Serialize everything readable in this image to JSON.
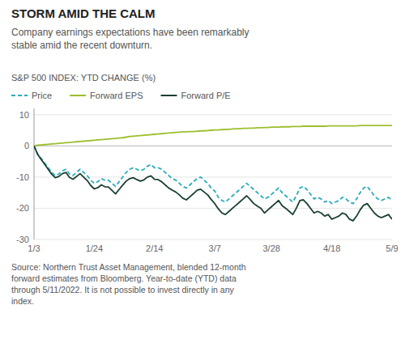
{
  "chart_data": {
    "type": "line",
    "title": "STORM AMID THE CALM",
    "subtitle": "Company earnings expectations have been remarkably\nstable amid the recent downturn.",
    "y_label": "S&P 500 INDEX: YTD CHANGE (%)",
    "source": "Source: Northern Trust Asset Management, blended 12-month\nforward estimates from Bloomberg. Year-to-date (YTD) data\nthrough 5/11/2022. It is not possible to invest directly in any\nindex.",
    "categories": [
      "1/3",
      null,
      null,
      null,
      null,
      null,
      null,
      null,
      null,
      null,
      null,
      null,
      null,
      null,
      null,
      null,
      null,
      "1/24",
      null,
      null,
      null,
      null,
      null,
      null,
      null,
      null,
      null,
      null,
      null,
      null,
      null,
      null,
      null,
      null,
      "2/14",
      null,
      null,
      null,
      null,
      null,
      null,
      null,
      null,
      null,
      null,
      null,
      null,
      null,
      null,
      null,
      null,
      "3/7",
      null,
      null,
      null,
      null,
      null,
      null,
      null,
      null,
      null,
      null,
      null,
      null,
      null,
      null,
      null,
      "3/28",
      null,
      null,
      null,
      null,
      null,
      null,
      null,
      null,
      null,
      null,
      null,
      null,
      null,
      null,
      null,
      null,
      "4/18",
      null,
      null,
      null,
      null,
      null,
      null,
      null,
      null,
      null,
      null,
      null,
      null,
      null,
      null,
      null,
      null,
      "5/9"
    ],
    "series": [
      {
        "name": "Price",
        "color": "#2AADBB",
        "line_style": "dashed",
        "values": [
          0.0,
          -2.5,
          -4.0,
          -5.5,
          -7.0,
          -8.5,
          -9.5,
          -9.0,
          -8.0,
          -7.5,
          -9.0,
          -9.5,
          -8.5,
          -7.5,
          -8.5,
          -9.5,
          -11.0,
          -12.0,
          -11.5,
          -10.5,
          -11.0,
          -11.0,
          -12.0,
          -13.0,
          -11.5,
          -10.0,
          -8.5,
          -7.5,
          -7.0,
          -7.5,
          -8.0,
          -7.5,
          -6.5,
          -6.0,
          -7.0,
          -7.0,
          -7.5,
          -8.5,
          -9.5,
          -10.5,
          -11.0,
          -12.0,
          -13.0,
          -13.5,
          -12.5,
          -11.5,
          -10.5,
          -10.0,
          -11.0,
          -12.0,
          -13.5,
          -14.5,
          -16.5,
          -17.5,
          -18.0,
          -17.0,
          -16.0,
          -15.0,
          -14.0,
          -13.0,
          -12.0,
          -13.0,
          -14.0,
          -15.0,
          -16.0,
          -17.0,
          -16.5,
          -15.5,
          -14.5,
          -13.5,
          -15.0,
          -16.0,
          -17.0,
          -18.0,
          -16.0,
          -13.5,
          -13.0,
          -14.0,
          -15.5,
          -17.0,
          -16.5,
          -17.0,
          -18.0,
          -17.5,
          -18.5,
          -18.0,
          -17.5,
          -16.5,
          -17.0,
          -18.0,
          -18.5,
          -17.0,
          -15.0,
          -13.5,
          -13.0,
          -14.5,
          -16.0,
          -17.0,
          -17.5,
          -17.0,
          -16.5,
          -17.5
        ]
      },
      {
        "name": "Forward EPS",
        "color": "#9BBF2E",
        "line_style": "solid",
        "values": [
          0.0,
          0.2,
          0.3,
          0.4,
          0.5,
          0.6,
          0.7,
          0.8,
          0.9,
          1.0,
          1.1,
          1.2,
          1.3,
          1.4,
          1.5,
          1.6,
          1.7,
          1.8,
          1.9,
          2.0,
          2.1,
          2.2,
          2.3,
          2.4,
          2.5,
          2.6,
          2.8,
          3.0,
          3.1,
          3.2,
          3.3,
          3.4,
          3.5,
          3.6,
          3.7,
          3.8,
          3.9,
          4.0,
          4.1,
          4.2,
          4.3,
          4.4,
          4.5,
          4.5,
          4.6,
          4.6,
          4.7,
          4.8,
          4.8,
          4.9,
          5.0,
          5.1,
          5.1,
          5.2,
          5.3,
          5.3,
          5.4,
          5.5,
          5.5,
          5.6,
          5.6,
          5.7,
          5.7,
          5.8,
          5.8,
          5.9,
          5.9,
          6.0,
          6.0,
          6.0,
          6.1,
          6.1,
          6.1,
          6.2,
          6.2,
          6.2,
          6.3,
          6.3,
          6.3,
          6.3,
          6.3,
          6.3,
          6.3,
          6.4,
          6.4,
          6.4,
          6.4,
          6.4,
          6.4,
          6.4,
          6.4,
          6.4,
          6.5,
          6.5,
          6.5,
          6.5,
          6.5,
          6.5,
          6.5,
          6.5,
          6.5,
          6.5
        ]
      },
      {
        "name": "Forward P/E",
        "color": "#1A4030",
        "line_style": "solid",
        "values": [
          0.0,
          -2.7,
          -4.3,
          -5.9,
          -7.5,
          -9.1,
          -10.2,
          -9.8,
          -8.9,
          -8.5,
          -10.1,
          -10.7,
          -9.8,
          -8.9,
          -10.0,
          -11.1,
          -12.7,
          -13.8,
          -13.4,
          -12.5,
          -13.1,
          -13.2,
          -14.3,
          -15.4,
          -14.0,
          -12.6,
          -11.3,
          -10.5,
          -10.2,
          -10.8,
          -11.3,
          -10.9,
          -10.0,
          -9.6,
          -10.7,
          -10.8,
          -11.5,
          -12.5,
          -13.5,
          -14.2,
          -14.8,
          -15.7,
          -16.8,
          -17.3,
          -16.3,
          -15.3,
          -14.2,
          -13.9,
          -14.8,
          -15.7,
          -17.2,
          -18.5,
          -20.2,
          -21.5,
          -22.0,
          -21.0,
          -20.0,
          -19.0,
          -18.0,
          -17.0,
          -16.0,
          -17.2,
          -18.5,
          -19.3,
          -20.0,
          -21.5,
          -20.5,
          -19.5,
          -18.5,
          -17.5,
          -19.2,
          -20.0,
          -21.0,
          -22.0,
          -20.0,
          -17.5,
          -17.3,
          -18.5,
          -20.0,
          -21.5,
          -21.0,
          -21.5,
          -22.5,
          -22.0,
          -23.5,
          -23.0,
          -22.5,
          -21.5,
          -22.0,
          -23.5,
          -24.0,
          -22.5,
          -20.5,
          -19.0,
          -18.5,
          -20.0,
          -21.5,
          -22.5,
          -23.0,
          -22.5,
          -22.0,
          -23.5
        ]
      }
    ],
    "ylim": [
      -30,
      12
    ],
    "yticks": [
      -30,
      -20,
      -10,
      0,
      10
    ],
    "grid": true,
    "legend": "top"
  }
}
